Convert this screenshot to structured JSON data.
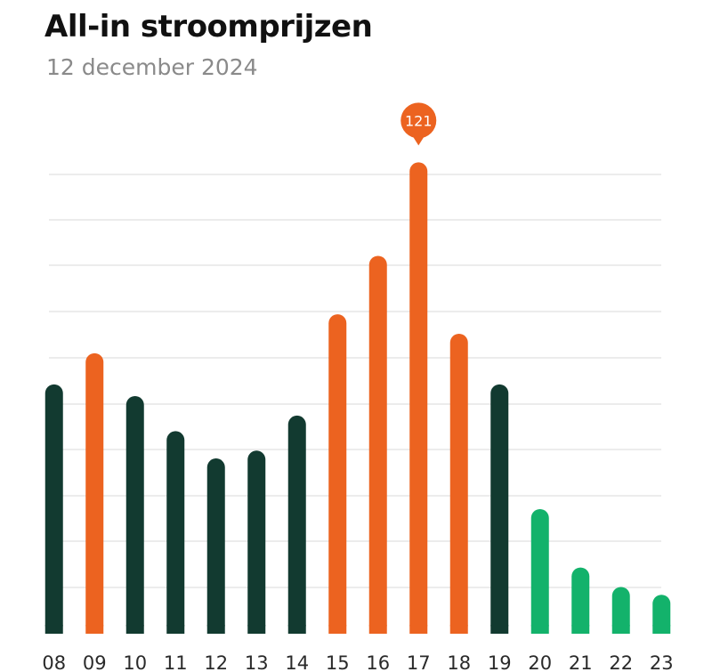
{
  "header": {
    "title": "All-in stroomprijzen",
    "subtitle": "12 december 2024"
  },
  "colors": {
    "dark": "#123a30",
    "orange": "#ec6320",
    "green": "#13b26b",
    "grid": "#ececec"
  },
  "chart_data": {
    "type": "bar",
    "title": "All-in stroomprijzen",
    "subtitle": "12 december 2024",
    "xlabel": "",
    "ylabel": "",
    "ylim": [
      0,
      130
    ],
    "grid": true,
    "categories": [
      "08",
      "09",
      "10",
      "11",
      "12",
      "13",
      "14",
      "15",
      "16",
      "17",
      "18",
      "19",
      "20",
      "21",
      "22",
      "23"
    ],
    "values": [
      64,
      72,
      61,
      52,
      45,
      47,
      56,
      82,
      97,
      121,
      77,
      64,
      32,
      17,
      12,
      10
    ],
    "bar_colors": [
      "dark",
      "orange",
      "dark",
      "dark",
      "dark",
      "dark",
      "dark",
      "orange",
      "orange",
      "orange",
      "orange",
      "dark",
      "green",
      "green",
      "green",
      "green"
    ],
    "highlight": {
      "index": 9,
      "label": "121"
    }
  }
}
